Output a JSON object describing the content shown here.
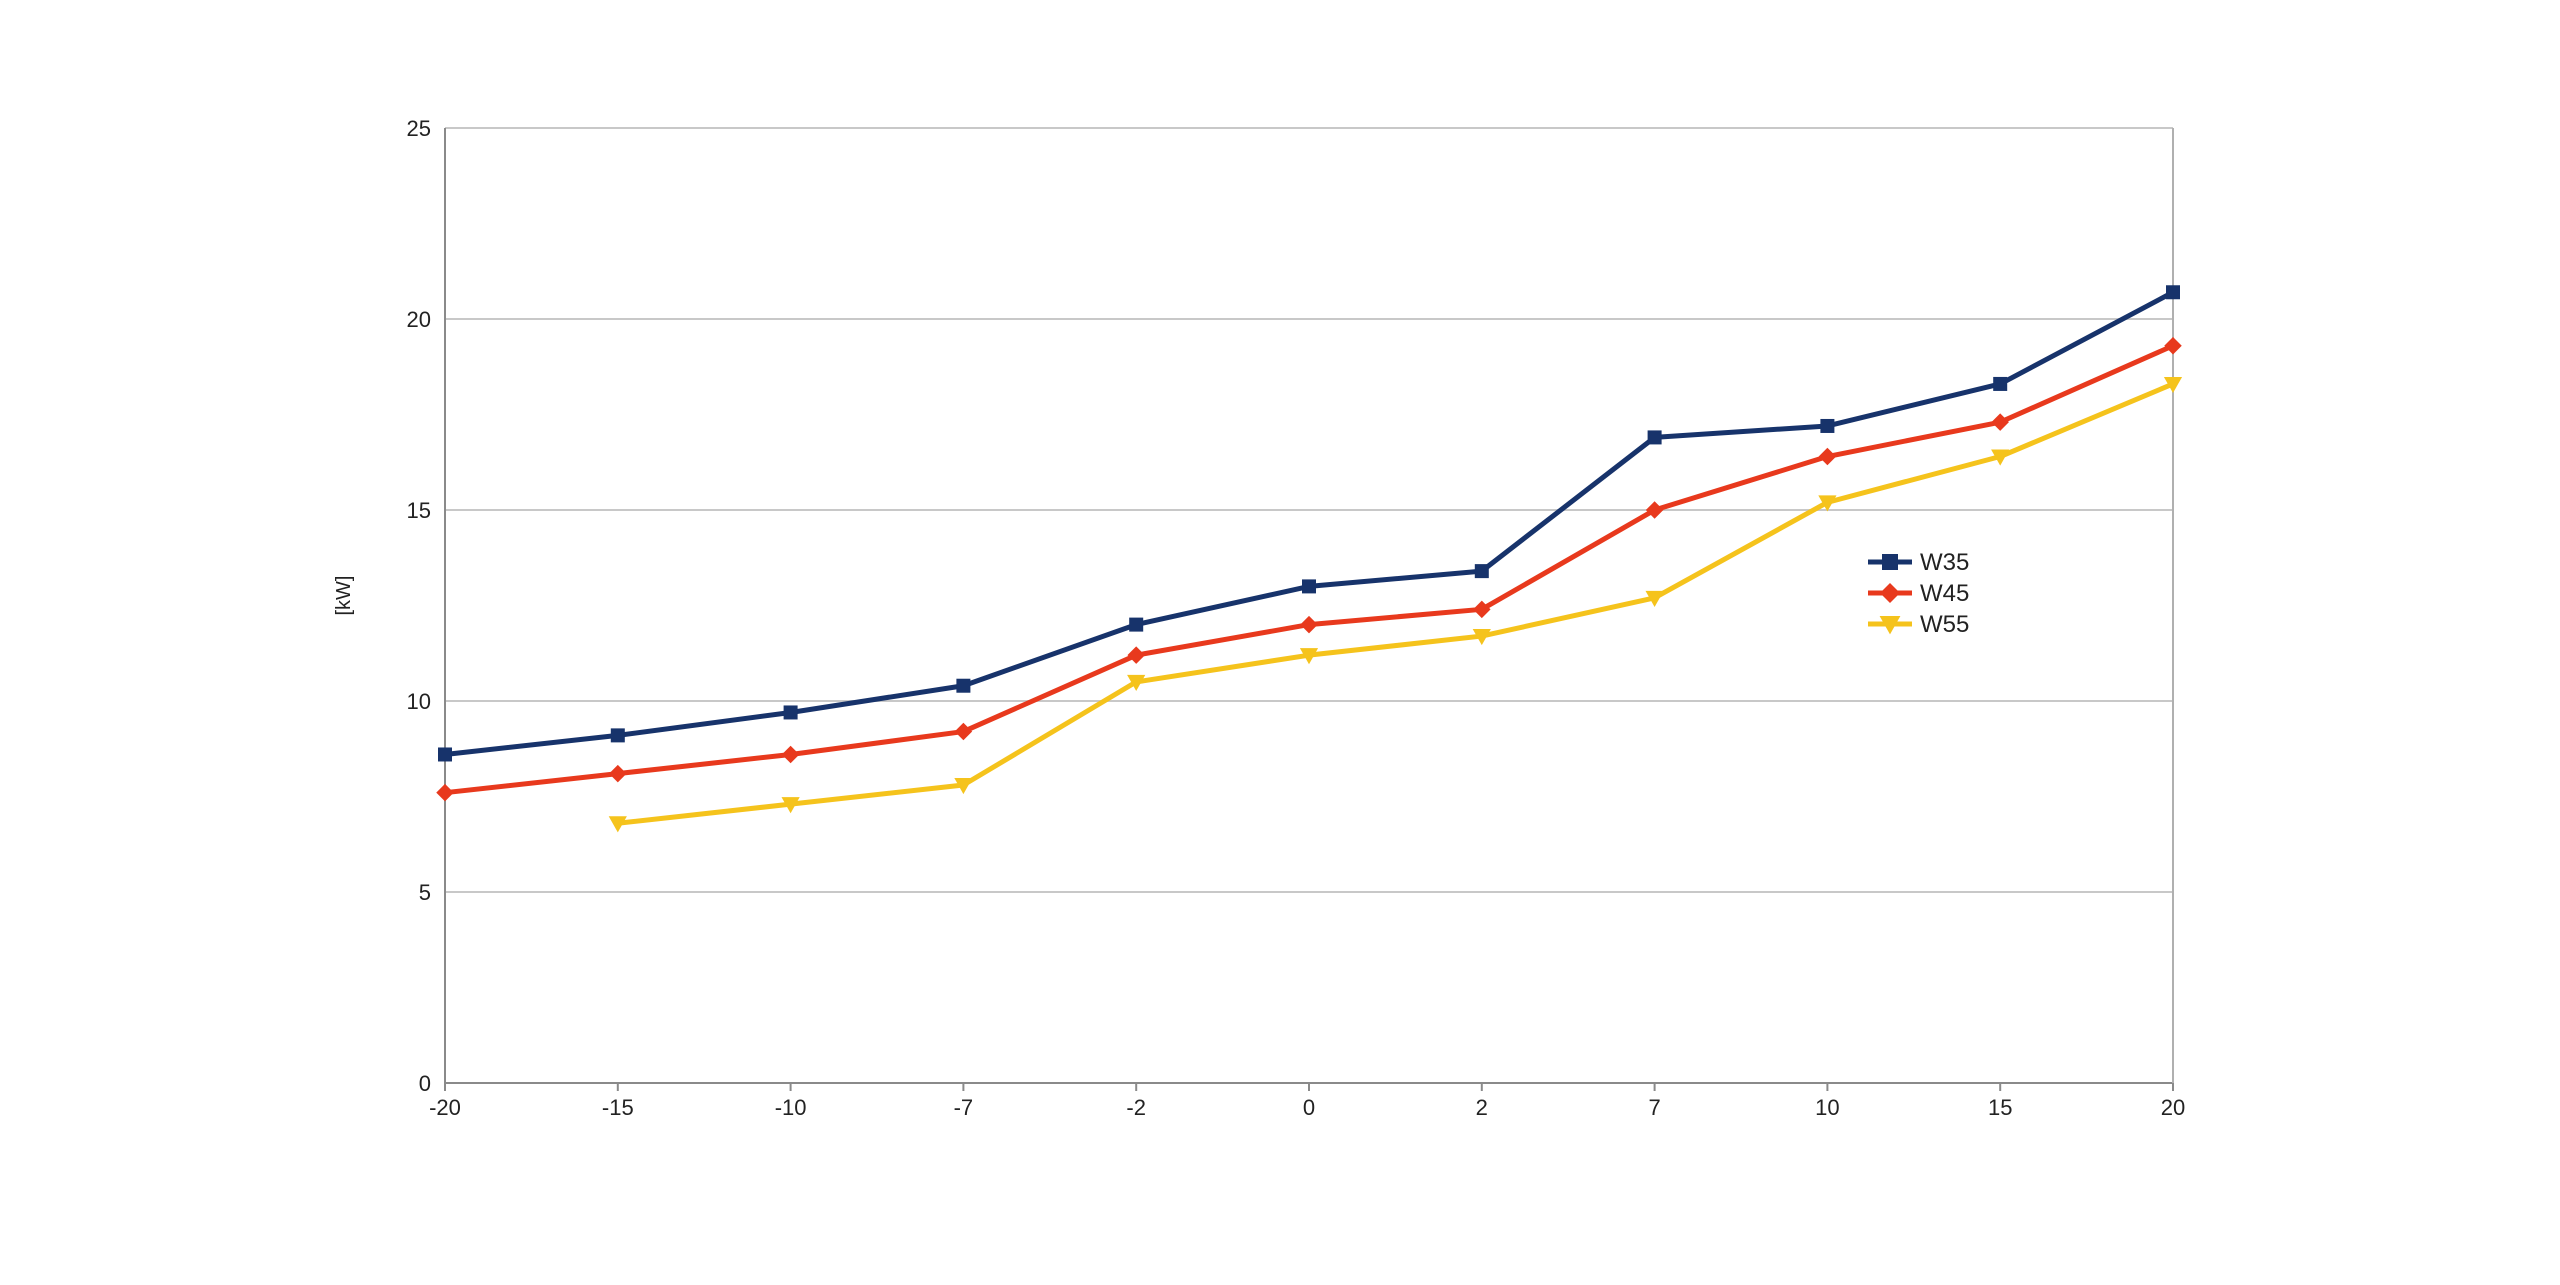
{
  "chart_data": {
    "type": "line",
    "title": "",
    "xlabel": "",
    "ylabel": "[kW]",
    "categories": [
      "-20",
      "-15",
      "-10",
      "-7",
      "-2",
      "0",
      "2",
      "7",
      "10",
      "15",
      "20"
    ],
    "ylim": [
      0,
      25
    ],
    "yticks": [
      0,
      5,
      10,
      15,
      20,
      25
    ],
    "grid": "horizontal",
    "legend_position": "right",
    "series": [
      {
        "name": "W35",
        "color": "#17336b",
        "marker": "square",
        "values": [
          8.6,
          9.1,
          9.7,
          10.4,
          12.0,
          13.0,
          13.4,
          16.9,
          17.2,
          18.3,
          20.7
        ]
      },
      {
        "name": "W45",
        "color": "#e8391d",
        "marker": "diamond",
        "values": [
          7.6,
          8.1,
          8.6,
          9.2,
          11.2,
          12.0,
          12.4,
          15.0,
          16.4,
          17.3,
          19.3
        ]
      },
      {
        "name": "W55",
        "color": "#f5c31c",
        "marker": "triangle-down",
        "values": [
          null,
          6.8,
          7.3,
          7.8,
          10.5,
          11.2,
          11.7,
          12.7,
          15.2,
          16.4,
          18.3
        ]
      }
    ]
  }
}
